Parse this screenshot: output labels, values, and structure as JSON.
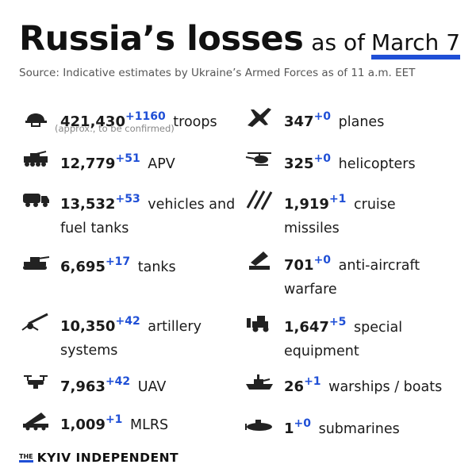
{
  "header": {
    "title": "Russia’s losses",
    "as_of_label": "as of",
    "date": "March 7",
    "source": "Source: Indicative estimates by Ukraine’s Armed Forces as of 11 a.m. EET"
  },
  "items": [
    {
      "icon": "helmet-icon",
      "value": "421,430",
      "delta": "+1160",
      "label": "troops",
      "note": "(approx., to be confirmed)"
    },
    {
      "icon": "plane-icon",
      "value": "347",
      "delta": "+0",
      "label": "planes"
    },
    {
      "icon": "apv-icon",
      "value": "12,779",
      "delta": "+51",
      "label": "APV"
    },
    {
      "icon": "helicopter-icon",
      "value": "325",
      "delta": "+0",
      "label": "helicopters"
    },
    {
      "icon": "truck-icon",
      "value": "13,532",
      "delta": "+53",
      "label": "vehicles and",
      "label2": "fuel tanks"
    },
    {
      "icon": "missile-icon",
      "value": "1,919",
      "delta": "+1",
      "label": "cruise",
      "label2": "missiles"
    },
    {
      "icon": "tank-icon",
      "value": "6,695",
      "delta": "+17",
      "label": "tanks"
    },
    {
      "icon": "anti-aircraft-icon",
      "value": "701",
      "delta": "+0",
      "label": "anti-aircraft",
      "label2": "warfare"
    },
    {
      "icon": "artillery-icon",
      "value": "10,350",
      "delta": "+42",
      "label": "artillery",
      "label2": "systems"
    },
    {
      "icon": "bulldozer-icon",
      "value": "1,647",
      "delta": "+5",
      "label": "special",
      "label2": "equipment"
    },
    {
      "icon": "drone-icon",
      "value": "7,963",
      "delta": "+42",
      "label": "UAV"
    },
    {
      "icon": "warship-icon",
      "value": "26",
      "delta": "+1",
      "label": "warships / boats"
    },
    {
      "icon": "mlrs-icon",
      "value": "1,009",
      "delta": "+1",
      "label": "MLRS"
    },
    {
      "icon": "submarine-icon",
      "value": "1",
      "delta": "+0",
      "label": "submarines"
    }
  ],
  "brand": {
    "the": "THE",
    "name": "KYIV INDEPENDENT"
  },
  "colors": {
    "accent": "#1f4fd6",
    "text": "#1a1a1a",
    "muted": "#555555"
  }
}
